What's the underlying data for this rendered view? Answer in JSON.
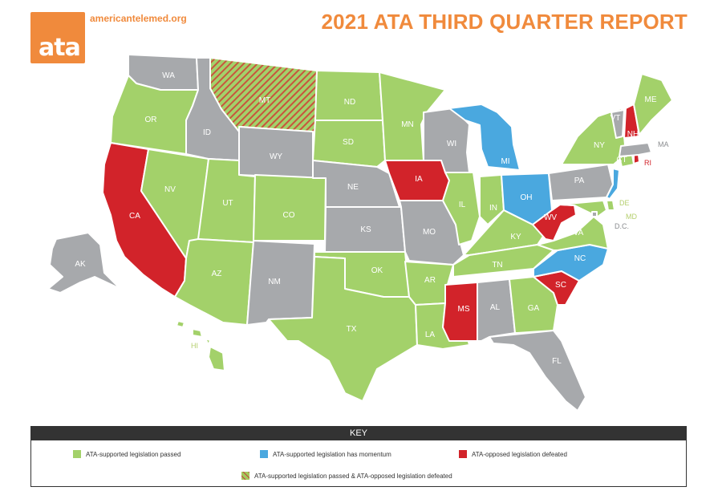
{
  "header": {
    "logo_text": "ata",
    "url": "americantelemed.org",
    "title": "2021 ATA THIRD QUARTER REPORT"
  },
  "colors": {
    "passed": "#a3d16a",
    "momentum": "#4aa8df",
    "defeated": "#d2232a",
    "none": "#a7a9ac",
    "hatch_stripe": "#c8553d",
    "accent": "#f08a3c"
  },
  "states": [
    {
      "abbr": "WA",
      "status": "none"
    },
    {
      "abbr": "OR",
      "status": "passed"
    },
    {
      "abbr": "CA",
      "status": "defeated"
    },
    {
      "abbr": "NV",
      "status": "passed"
    },
    {
      "abbr": "ID",
      "status": "none"
    },
    {
      "abbr": "MT",
      "status": "passed-and-defeated"
    },
    {
      "abbr": "WY",
      "status": "none"
    },
    {
      "abbr": "UT",
      "status": "passed"
    },
    {
      "abbr": "AZ",
      "status": "passed"
    },
    {
      "abbr": "CO",
      "status": "passed"
    },
    {
      "abbr": "NM",
      "status": "none"
    },
    {
      "abbr": "ND",
      "status": "passed"
    },
    {
      "abbr": "SD",
      "status": "passed"
    },
    {
      "abbr": "NE",
      "status": "none"
    },
    {
      "abbr": "KS",
      "status": "none"
    },
    {
      "abbr": "OK",
      "status": "passed"
    },
    {
      "abbr": "TX",
      "status": "passed"
    },
    {
      "abbr": "MN",
      "status": "passed"
    },
    {
      "abbr": "IA",
      "status": "defeated"
    },
    {
      "abbr": "MO",
      "status": "none"
    },
    {
      "abbr": "AR",
      "status": "passed"
    },
    {
      "abbr": "LA",
      "status": "passed"
    },
    {
      "abbr": "WI",
      "status": "none"
    },
    {
      "abbr": "IL",
      "status": "passed"
    },
    {
      "abbr": "MI",
      "status": "momentum"
    },
    {
      "abbr": "IN",
      "status": "passed"
    },
    {
      "abbr": "OH",
      "status": "momentum"
    },
    {
      "abbr": "KY",
      "status": "passed"
    },
    {
      "abbr": "TN",
      "status": "passed"
    },
    {
      "abbr": "MS",
      "status": "defeated"
    },
    {
      "abbr": "AL",
      "status": "none"
    },
    {
      "abbr": "GA",
      "status": "passed"
    },
    {
      "abbr": "FL",
      "status": "none"
    },
    {
      "abbr": "SC",
      "status": "defeated"
    },
    {
      "abbr": "NC",
      "status": "momentum"
    },
    {
      "abbr": "VA",
      "status": "passed"
    },
    {
      "abbr": "WV",
      "status": "defeated"
    },
    {
      "abbr": "PA",
      "status": "none"
    },
    {
      "abbr": "NY",
      "status": "passed"
    },
    {
      "abbr": "NJ",
      "status": "momentum"
    },
    {
      "abbr": "DE",
      "status": "passed"
    },
    {
      "abbr": "MD",
      "status": "passed"
    },
    {
      "abbr": "D.C.",
      "status": "none"
    },
    {
      "abbr": "CT",
      "status": "passed"
    },
    {
      "abbr": "RI",
      "status": "defeated"
    },
    {
      "abbr": "MA",
      "status": "none"
    },
    {
      "abbr": "VT",
      "status": "none"
    },
    {
      "abbr": "NH",
      "status": "defeated"
    },
    {
      "abbr": "ME",
      "status": "passed"
    },
    {
      "abbr": "AK",
      "status": "none"
    },
    {
      "abbr": "HI",
      "status": "passed"
    }
  ],
  "key": {
    "title": "KEY",
    "passed": "ATA-supported legislation passed",
    "momentum": "ATA-supported legislation has momentum",
    "defeated": "ATA-opposed legislation defeated",
    "passed_and_defeated": "ATA-supported legislation passed & ATA-opposed legislation defeated"
  }
}
